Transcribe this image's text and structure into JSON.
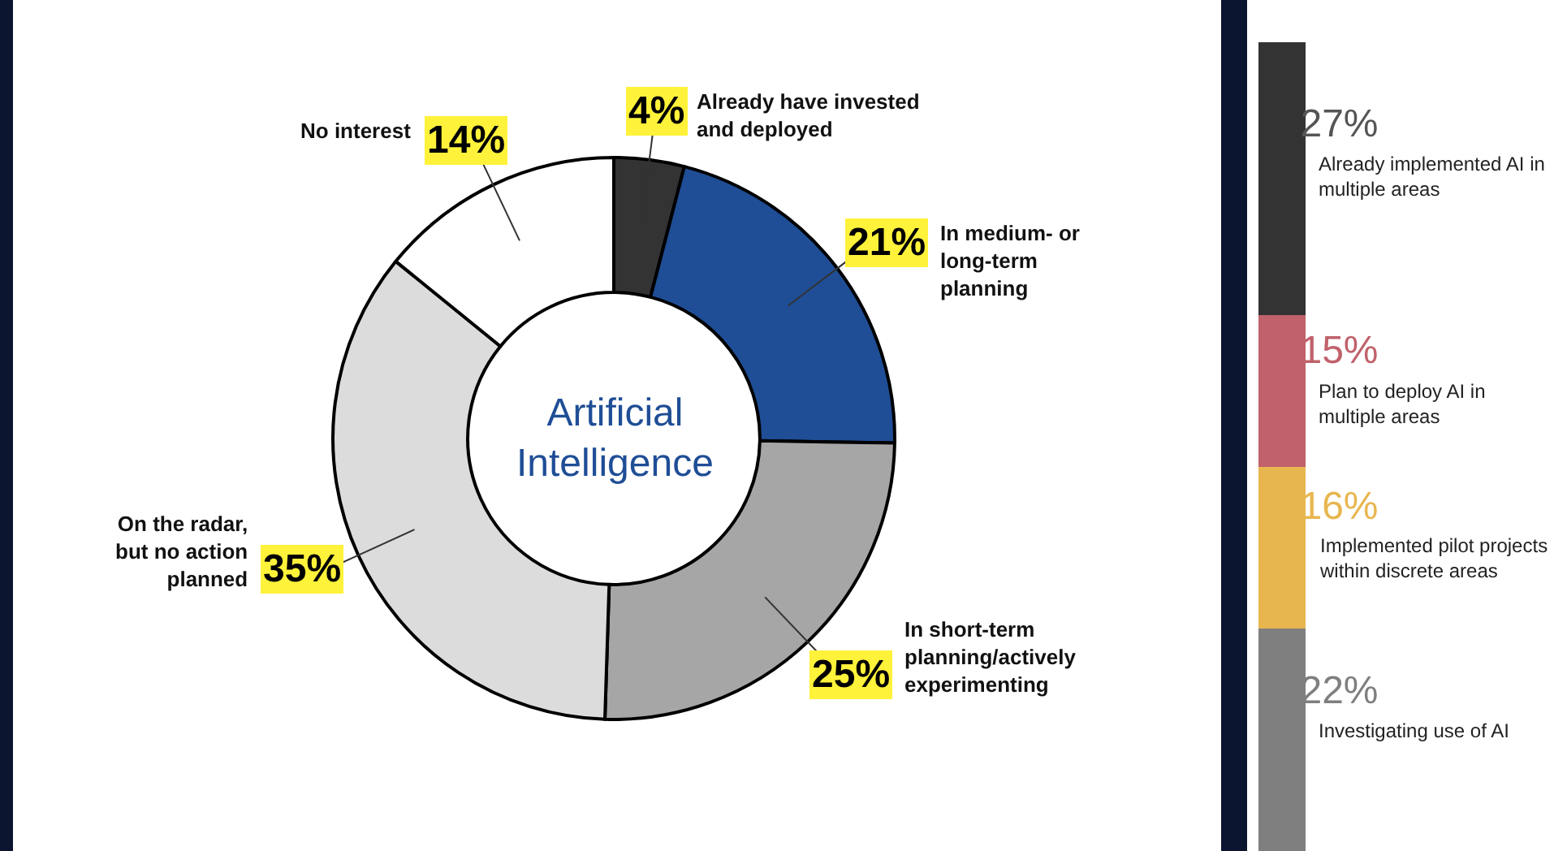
{
  "chart_data": [
    {
      "type": "donut",
      "title": "Artificial Intelligence",
      "categories": [
        "Already have invested and deployed",
        "In medium- or long-term planning",
        "In short-term planning/actively experimenting",
        "On the radar, but no action planned",
        "No interest"
      ],
      "values": [
        4,
        21,
        25,
        35,
        14
      ],
      "colors": [
        "#333333",
        "#1f4e96",
        "#a6a6a6",
        "#dcdcdc",
        "#ffffff"
      ],
      "value_labels": [
        "4%",
        "21%",
        "25%",
        "35%",
        "14%"
      ]
    },
    {
      "type": "bar",
      "stacked": true,
      "categories": [
        null
      ],
      "tick_labels": false,
      "series": [
        {
          "name": "Investigating use of AI",
          "color": "#7f7f7f",
          "values": [
            22
          ],
          "value_labels": [
            "22%"
          ]
        },
        {
          "name": "Implemented pilot projects within discrete areas",
          "color": "#e8b64f",
          "values": [
            16
          ],
          "value_labels": [
            "16%"
          ]
        },
        {
          "name": "Plan to deploy AI in multiple areas",
          "color": "#c0616b",
          "values": [
            15
          ],
          "value_labels": [
            "15%"
          ]
        },
        {
          "name": "Already implemented AI in multiple areas",
          "color": "#333333",
          "values": [
            27
          ],
          "value_labels": [
            "27%"
          ]
        }
      ]
    }
  ]
}
